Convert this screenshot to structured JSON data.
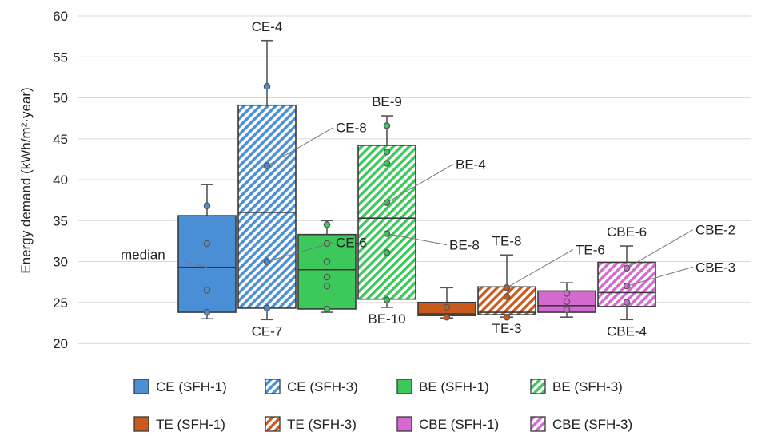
{
  "chart_data": {
    "type": "box",
    "ylabel": "Energy demand (kWh/m²·year)",
    "ylim": [
      20,
      60
    ],
    "yticks": [
      20,
      25,
      30,
      35,
      40,
      45,
      50,
      55,
      60
    ],
    "grid": true,
    "legend_position": "bottom",
    "colors": {
      "CE": "#4a8fd6",
      "BE": "#3cc85a",
      "TE": "#c85a1e",
      "CBE": "#d46ad0"
    },
    "boxes": [
      {
        "name": "CE (SFH-1)",
        "group": "CE",
        "hatched": false,
        "whisker_low": 23.0,
        "q1": 23.8,
        "median": 29.3,
        "q3": 35.6,
        "whisker_high": 39.4,
        "points": [
          23.8,
          26.5,
          32.2,
          36.8
        ]
      },
      {
        "name": "CE (SFH-3)",
        "group": "CE",
        "hatched": true,
        "whisker_low": 22.9,
        "q1": 24.3,
        "median": 36.0,
        "q3": 49.1,
        "whisker_high": 57.0,
        "points": [
          24.3,
          30.0,
          41.7,
          51.4
        ]
      },
      {
        "name": "BE (SFH-1)",
        "group": "BE",
        "hatched": false,
        "whisker_low": 23.8,
        "q1": 24.2,
        "median": 29.0,
        "q3": 33.3,
        "whisker_high": 35.0,
        "points": [
          24.2,
          27.0,
          28.1,
          30.0,
          32.2,
          34.5
        ]
      },
      {
        "name": "BE (SFH-3)",
        "group": "BE",
        "hatched": true,
        "whisker_low": 24.4,
        "q1": 25.4,
        "median": 35.3,
        "q3": 44.2,
        "whisker_high": 47.8,
        "points": [
          25.3,
          31.1,
          33.4,
          37.2,
          42.0,
          43.4,
          46.6
        ]
      },
      {
        "name": "TE (SFH-1)",
        "group": "TE",
        "hatched": false,
        "whisker_low": 23.1,
        "q1": 23.4,
        "median": 23.6,
        "q3": 25.0,
        "whisker_high": 26.8,
        "points": [
          23.2,
          24.4
        ]
      },
      {
        "name": "TE (SFH-3)",
        "group": "TE",
        "hatched": true,
        "whisker_low": 23.2,
        "q1": 23.5,
        "median": 23.8,
        "q3": 26.9,
        "whisker_high": 30.8,
        "points": [
          23.2,
          25.7,
          26.8
        ]
      },
      {
        "name": "CBE (SFH-1)",
        "group": "CBE",
        "hatched": false,
        "whisker_low": 23.2,
        "q1": 23.8,
        "median": 24.6,
        "q3": 26.4,
        "whisker_high": 27.4,
        "points": [
          24.1,
          25.1,
          26.1
        ]
      },
      {
        "name": "CBE (SFH-3)",
        "group": "CBE",
        "hatched": true,
        "whisker_low": 22.9,
        "q1": 24.5,
        "median": 26.2,
        "q3": 29.9,
        "whisker_high": 31.9,
        "points": [
          25.0,
          27.0,
          29.2
        ]
      }
    ],
    "annotations": [
      {
        "text": "median",
        "box": 0,
        "y": 29.3,
        "leader": true,
        "side": "left",
        "pos": "left"
      },
      {
        "text": "CE-4",
        "box": 1,
        "y": 57.0,
        "leader": false,
        "pos": "above"
      },
      {
        "text": "CE-8",
        "box": 1,
        "y": 41.7,
        "leader": true,
        "side": "right",
        "pos": "upper-right"
      },
      {
        "text": "CE-6",
        "box": 1,
        "y": 30.0,
        "leader": true,
        "side": "right",
        "pos": "right"
      },
      {
        "text": "CE-7",
        "box": 1,
        "y": 22.9,
        "leader": false,
        "pos": "below"
      },
      {
        "text": "BE-9",
        "box": 3,
        "y": 47.8,
        "leader": false,
        "pos": "above"
      },
      {
        "text": "BE-4",
        "box": 3,
        "y": 37.2,
        "leader": true,
        "side": "right",
        "pos": "upper-right"
      },
      {
        "text": "BE-8",
        "box": 3,
        "y": 33.4,
        "leader": true,
        "side": "right",
        "pos": "lower-right"
      },
      {
        "text": "BE-10",
        "box": 3,
        "y": 24.4,
        "leader": false,
        "pos": "below"
      },
      {
        "text": "TE-8",
        "box": 5,
        "y": 30.8,
        "leader": false,
        "pos": "above"
      },
      {
        "text": "TE-6",
        "box": 5,
        "y": 26.8,
        "leader": true,
        "side": "right",
        "pos": "upper-right"
      },
      {
        "text": "TE-3",
        "box": 5,
        "y": 23.2,
        "leader": false,
        "pos": "below"
      },
      {
        "text": "CBE-6",
        "box": 7,
        "y": 31.9,
        "leader": false,
        "pos": "above"
      },
      {
        "text": "CBE-2",
        "box": 7,
        "y": 29.2,
        "leader": true,
        "side": "right",
        "pos": "upper-right"
      },
      {
        "text": "CBE-3",
        "box": 7,
        "y": 27.0,
        "leader": true,
        "side": "right",
        "pos": "right"
      },
      {
        "text": "CBE-4",
        "box": 7,
        "y": 22.9,
        "leader": false,
        "pos": "below"
      }
    ]
  }
}
